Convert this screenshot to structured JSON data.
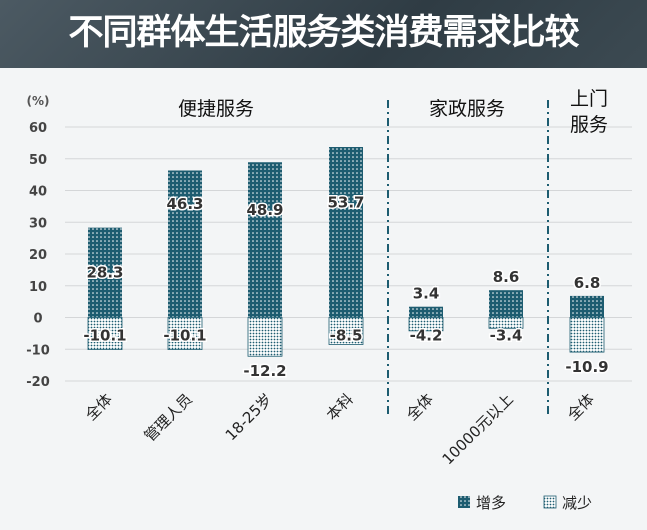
{
  "chart_data": {
    "type": "bar",
    "title": "不同群体生活服务类消费需求比较",
    "ylabel": "(%)",
    "ylim": [
      -20,
      60
    ],
    "yticks": [
      60,
      50,
      40,
      30,
      20,
      10,
      0,
      -10,
      -20
    ],
    "groups": [
      {
        "label": "便捷服务",
        "count": 4
      },
      {
        "label": "家政服务",
        "count": 2
      },
      {
        "label": "上门\n服务",
        "label_lines": [
          "上门",
          "服务"
        ],
        "count": 1
      }
    ],
    "categories": [
      "全体",
      "管理人员",
      "18-25岁",
      "本科",
      "全体",
      "10000元以上",
      "全体"
    ],
    "series": [
      {
        "name": "增多",
        "values": [
          28.3,
          46.3,
          48.9,
          53.7,
          3.4,
          8.6,
          6.8
        ],
        "color": "#1d5c70"
      },
      {
        "name": "减少",
        "values": [
          -10.1,
          -10.1,
          -12.2,
          -8.5,
          -4.2,
          -3.4,
          -10.9
        ],
        "color": "#1d5c70"
      }
    ],
    "legend": "bottom-right"
  }
}
